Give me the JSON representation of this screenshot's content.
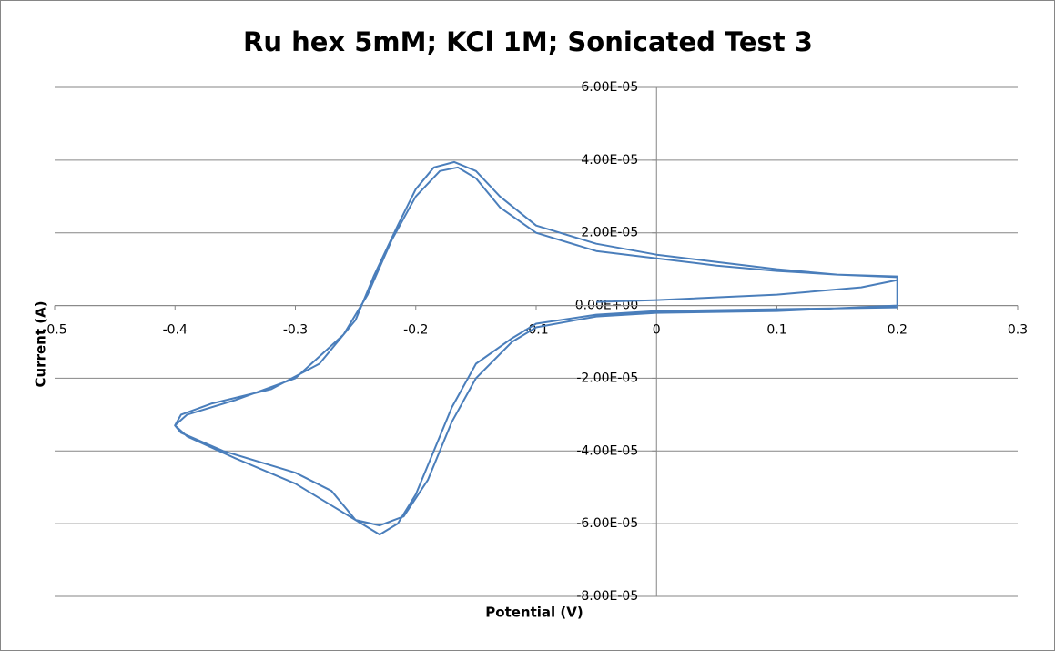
{
  "chart_data": {
    "type": "line",
    "title": "Ru hex 5mM; KCl 1M; Sonicated Test 3",
    "x_label": "Potential (V)",
    "y_label": "Current (A)",
    "color": "#4a7ebb",
    "xlim": [
      -0.5,
      0.3
    ],
    "xticks": [
      -0.5,
      -0.4,
      -0.3,
      -0.2,
      -0.1,
      0,
      0.1,
      0.2,
      0.3
    ],
    "ylim": [
      -8e-05,
      6e-05
    ],
    "yticks": [
      {
        "value": -8e-05,
        "label": "-8.00E-05"
      },
      {
        "value": -6e-05,
        "label": "-6.00E-05"
      },
      {
        "value": -4e-05,
        "label": "-4.00E-05"
      },
      {
        "value": -2e-05,
        "label": "-2.00E-05"
      },
      {
        "value": 0,
        "label": "0.00E+00"
      },
      {
        "value": 2e-05,
        "label": "2.00E-05"
      },
      {
        "value": 4e-05,
        "label": "4.00E-05"
      },
      {
        "value": 6e-05,
        "label": "6.00E-05"
      }
    ],
    "grid": true,
    "x": [
      -0.05,
      0,
      0.1,
      0.17,
      0.2,
      0.2,
      0.15,
      0.1,
      0.05,
      0,
      -0.05,
      -0.1,
      -0.13,
      -0.15,
      -0.165,
      -0.18,
      -0.2,
      -0.22,
      -0.24,
      -0.26,
      -0.3,
      -0.35,
      -0.39,
      -0.4,
      -0.39,
      -0.35,
      -0.3,
      -0.27,
      -0.25,
      -0.23,
      -0.21,
      -0.19,
      -0.17,
      -0.15,
      -0.12,
      -0.1,
      -0.05,
      0,
      0.1,
      0.2,
      0.2,
      0.15,
      0.1,
      0.05,
      0,
      -0.05,
      -0.1,
      -0.13,
      -0.15,
      -0.168,
      -0.185,
      -0.2,
      -0.215,
      -0.235,
      -0.25,
      -0.28,
      -0.32,
      -0.37,
      -0.395,
      -0.4,
      -0.395,
      -0.36,
      -0.3,
      -0.27,
      -0.25,
      -0.23,
      -0.215,
      -0.2,
      -0.185,
      -0.17,
      -0.15,
      -0.12,
      -0.1,
      -0.05,
      0,
      0.1,
      0.2
    ],
    "values": [
      1e-06,
      1.5e-06,
      3e-06,
      5e-06,
      7e-06,
      8e-06,
      8.5e-06,
      9.5e-06,
      1.1e-05,
      1.3e-05,
      1.5e-05,
      2e-05,
      2.7e-05,
      3.5e-05,
      3.8e-05,
      3.7e-05,
      3e-05,
      1.8e-05,
      3e-06,
      -8e-06,
      -2e-05,
      -2.6e-05,
      -3e-05,
      -3.3e-05,
      -3.6e-05,
      -4.2e-05,
      -4.9e-05,
      -5.5e-05,
      -5.9e-05,
      -6.05e-05,
      -5.8e-05,
      -4.8e-05,
      -3.2e-05,
      -2e-05,
      -1e-05,
      -6e-06,
      -3e-06,
      -2e-06,
      -1.5e-06,
      0,
      7.8e-06,
      8.5e-06,
      1e-05,
      1.2e-05,
      1.4e-05,
      1.7e-05,
      2.2e-05,
      3e-05,
      3.7e-05,
      3.95e-05,
      3.8e-05,
      3.2e-05,
      2.2e-05,
      8e-06,
      -4e-06,
      -1.6e-05,
      -2.3e-05,
      -2.7e-05,
      -3e-05,
      -3.3e-05,
      -3.5e-05,
      -4e-05,
      -4.6e-05,
      -5.1e-05,
      -5.9e-05,
      -6.3e-05,
      -6e-05,
      -5.2e-05,
      -4e-05,
      -2.8e-05,
      -1.6e-05,
      -9e-06,
      -5e-06,
      -2.5e-06,
      -1.5e-06,
      -1e-06,
      -5e-07
    ]
  }
}
